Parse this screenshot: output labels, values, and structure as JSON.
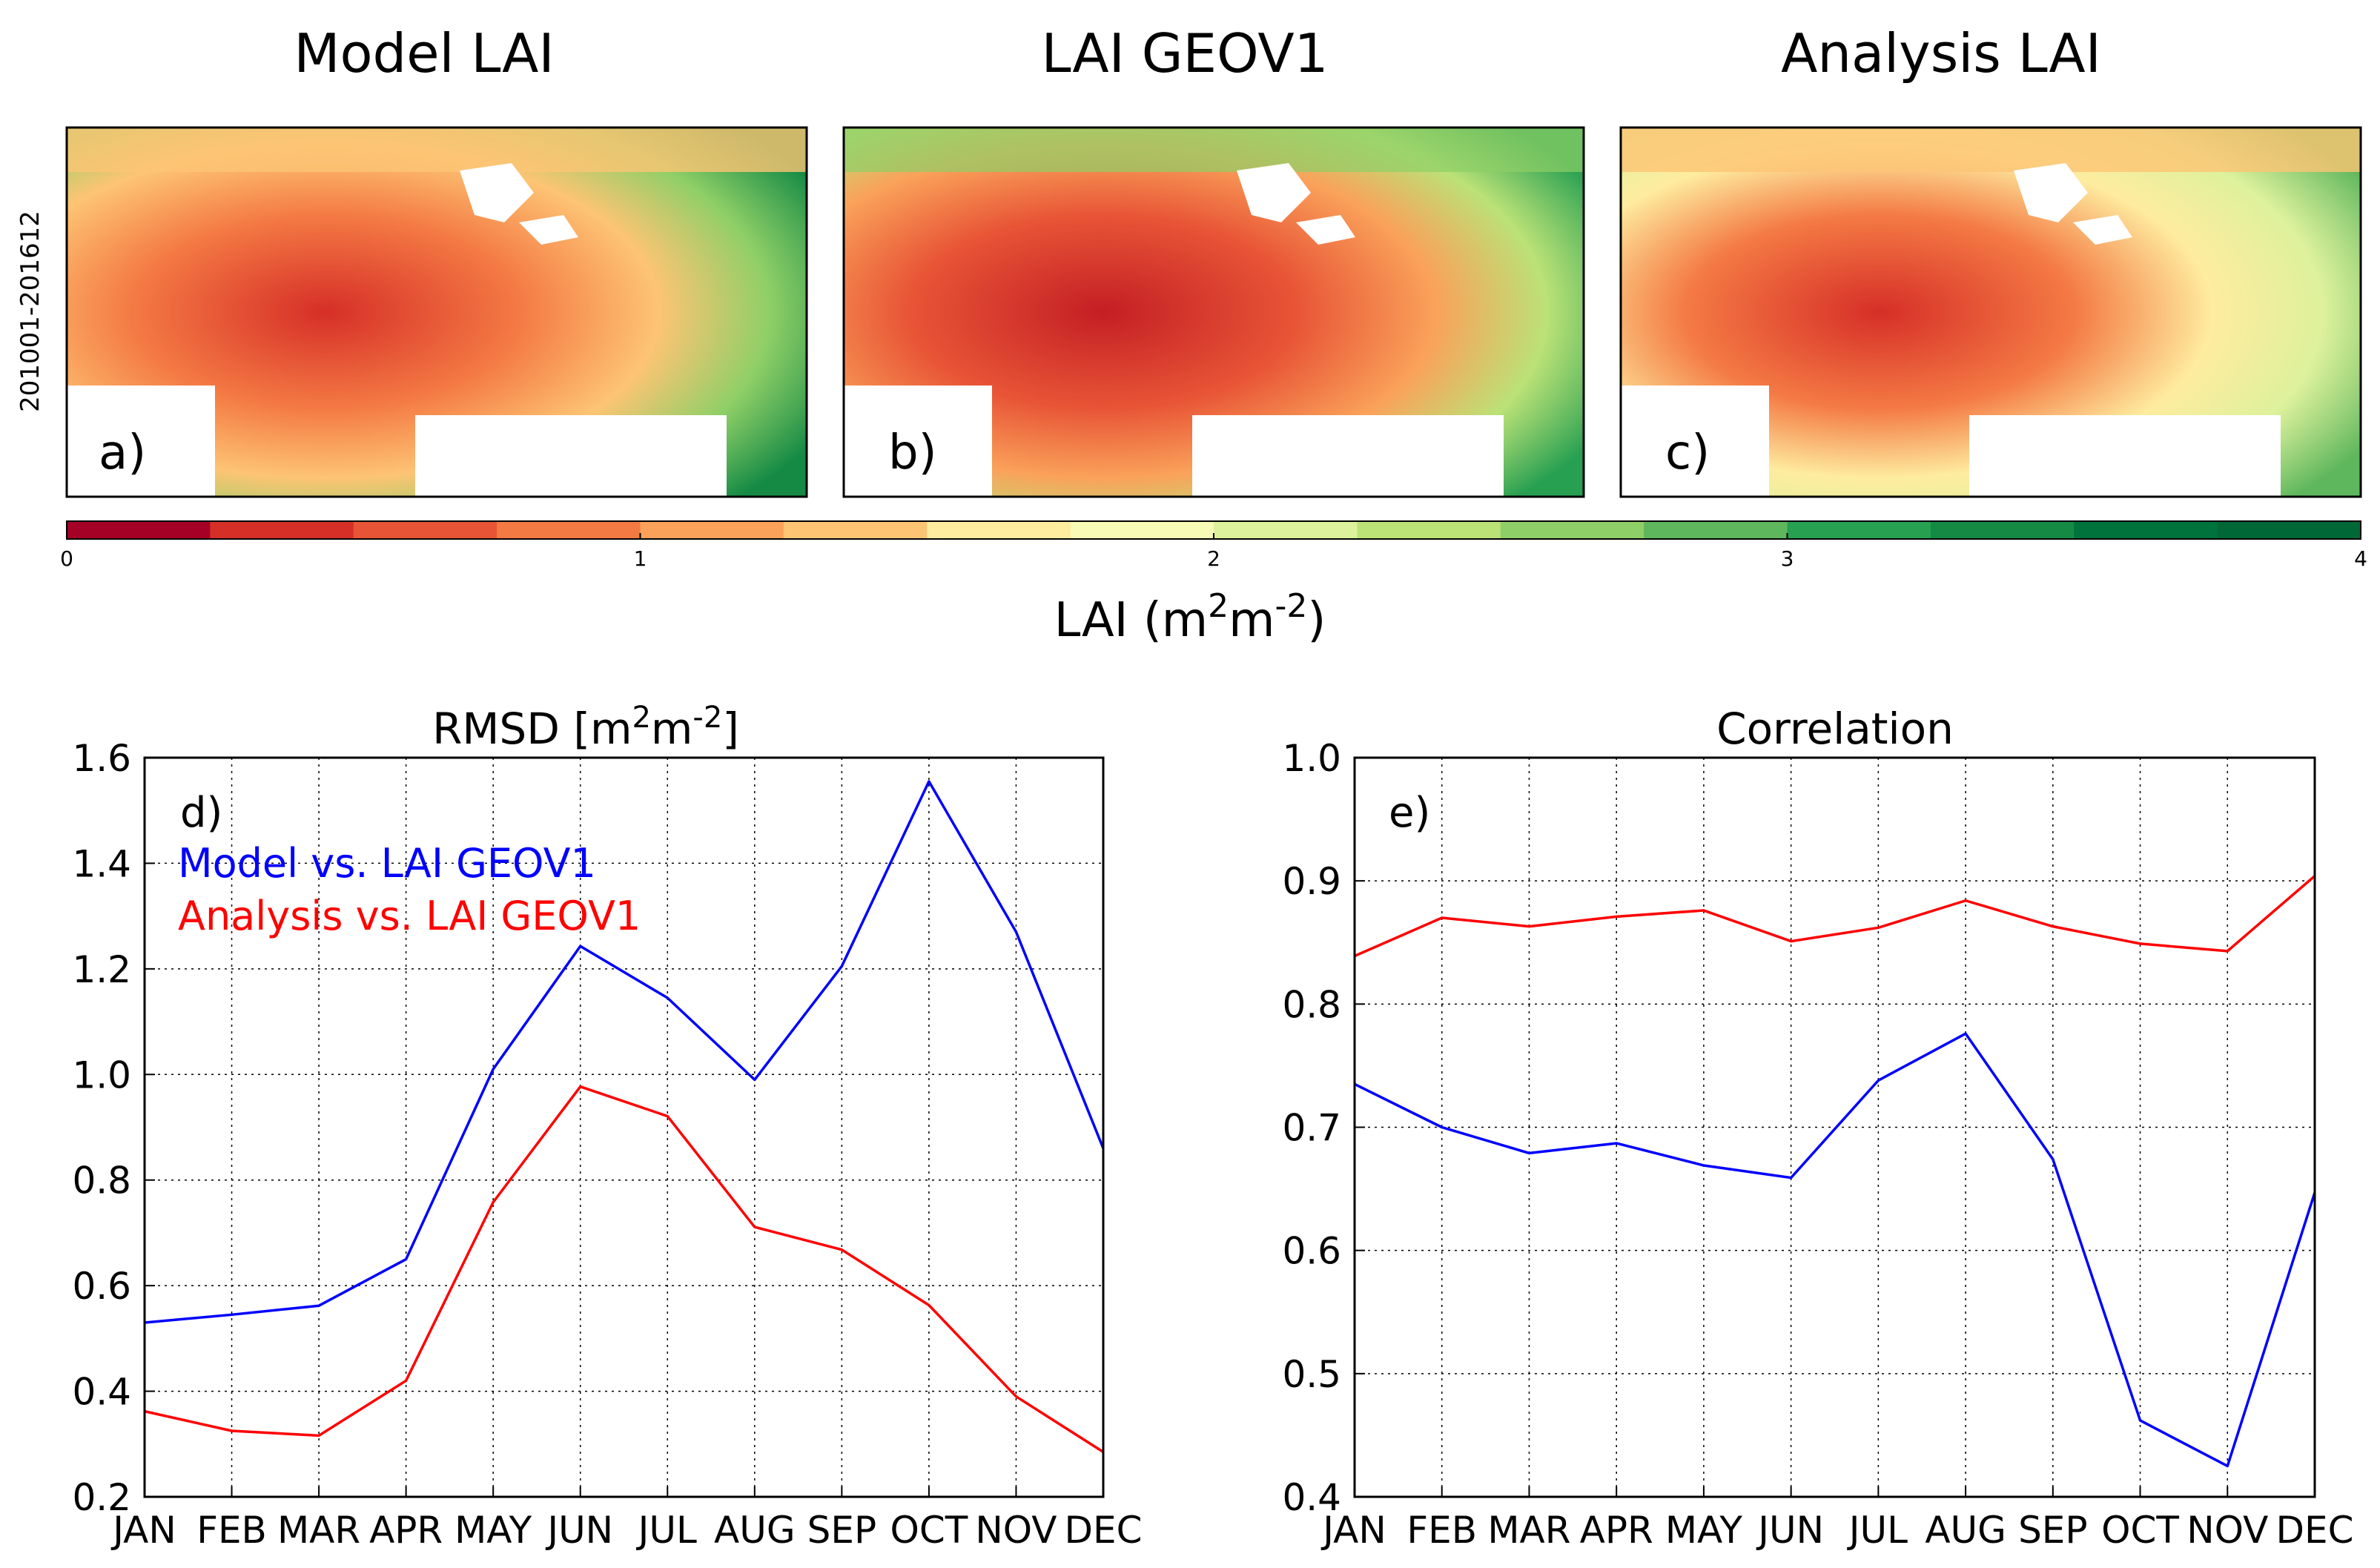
{
  "maps": {
    "row_label": "201001-201612",
    "panels": [
      {
        "title": "Model LAI",
        "letter": "a)"
      },
      {
        "title": "LAI GEOV1",
        "letter": "b)"
      },
      {
        "title": "Analysis LAI",
        "letter": "c)"
      }
    ]
  },
  "colorbar": {
    "label_prefix": "LAI (m",
    "label_sup1": "2",
    "label_mid": "m",
    "label_sup2": "-2",
    "label_suffix": ")",
    "ticks": [
      "0",
      "1",
      "2",
      "3",
      "4"
    ],
    "range": [
      0,
      4
    ],
    "colors": [
      "#a50026",
      "#d62f27",
      "#e85536",
      "#f47a44",
      "#faa25a",
      "#fdc474",
      "#feec9f",
      "#f7fbb6",
      "#ddf19c",
      "#bbe277",
      "#8fcf67",
      "#5fb75d",
      "#28a052",
      "#148a45",
      "#00723c",
      "#006837"
    ]
  },
  "chart_data": [
    {
      "type": "line",
      "panel": "d)",
      "title_prefix": "RMSD [m",
      "title_sup1": "2",
      "title_mid": "m",
      "title_sup2": "-2",
      "title_suffix": "]",
      "categories": [
        "JAN",
        "FEB",
        "MAR",
        "APR",
        "MAY",
        "JUN",
        "JUL",
        "AUG",
        "SEP",
        "OCT",
        "NOV",
        "DEC"
      ],
      "ylim": [
        0.2,
        1.6
      ],
      "yticks": [
        "0.2",
        "0.4",
        "0.6",
        "0.8",
        "1.0",
        "1.2",
        "1.4",
        "1.6"
      ],
      "grid": true,
      "legend": "top-left",
      "series": [
        {
          "name": "Model vs. LAI GEOV1",
          "color": "#0000ff",
          "values": [
            0.53,
            0.545,
            0.562,
            0.65,
            1.01,
            1.243,
            1.145,
            0.99,
            1.205,
            1.555,
            1.27,
            0.86
          ]
        },
        {
          "name": "Analysis vs. LAI GEOV1",
          "color": "#ff0000",
          "values": [
            0.362,
            0.325,
            0.316,
            0.42,
            0.758,
            0.977,
            0.921,
            0.711,
            0.668,
            0.563,
            0.39,
            0.285
          ]
        }
      ]
    },
    {
      "type": "line",
      "panel": "e)",
      "title": "Correlation",
      "categories": [
        "JAN",
        "FEB",
        "MAR",
        "APR",
        "MAY",
        "JUN",
        "JUL",
        "AUG",
        "SEP",
        "OCT",
        "NOV",
        "DEC"
      ],
      "ylim": [
        0.4,
        1.0
      ],
      "yticks": [
        "0.4",
        "0.5",
        "0.6",
        "0.7",
        "0.8",
        "0.9",
        "1.0"
      ],
      "grid": true,
      "series": [
        {
          "name": "Model vs. LAI GEOV1",
          "color": "#0000ff",
          "values": [
            0.735,
            0.7,
            0.679,
            0.687,
            0.669,
            0.659,
            0.738,
            0.776,
            0.674,
            0.462,
            0.425,
            0.647
          ]
        },
        {
          "name": "Analysis vs. LAI GEOV1",
          "color": "#ff0000",
          "values": [
            0.839,
            0.87,
            0.863,
            0.871,
            0.876,
            0.851,
            0.862,
            0.884,
            0.863,
            0.849,
            0.843,
            0.904
          ]
        }
      ]
    }
  ]
}
